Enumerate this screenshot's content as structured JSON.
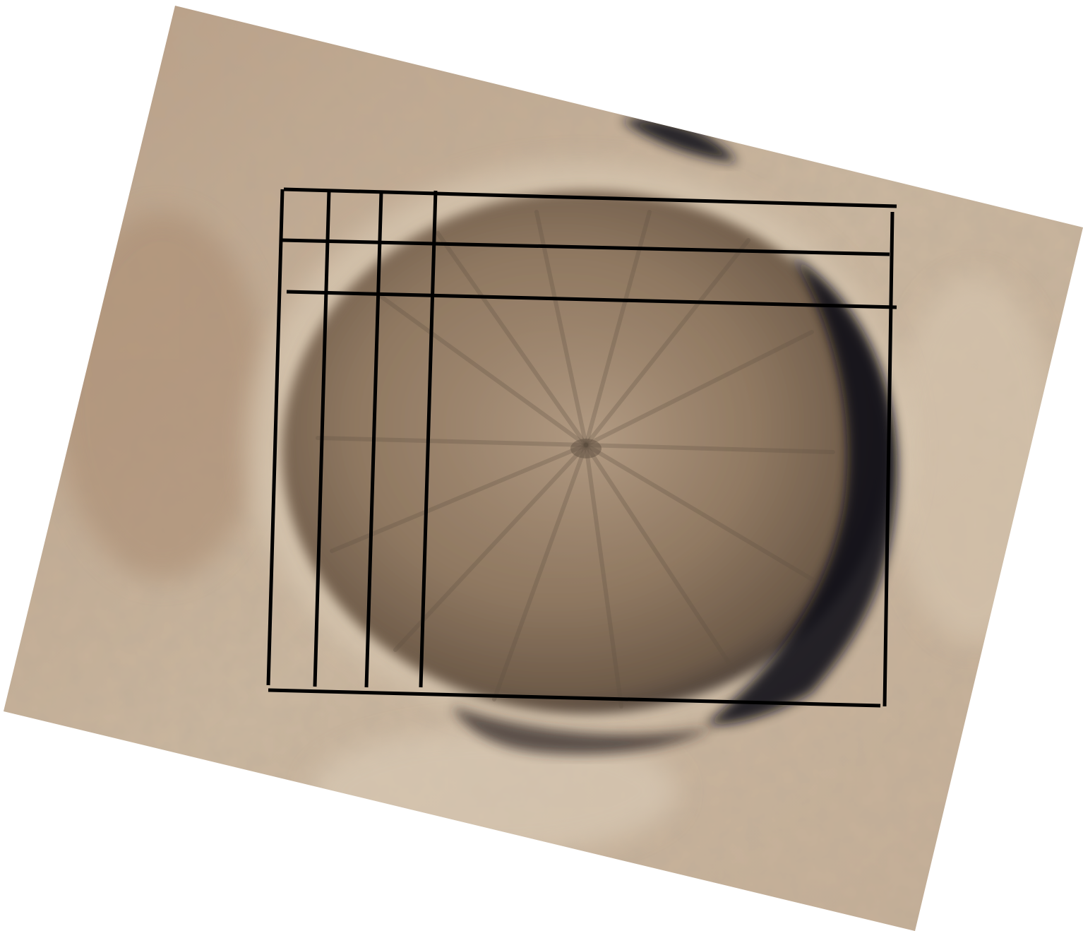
{
  "image": {
    "subject": "aerial-photo-of-crater",
    "colors": {
      "page_background": "#ffffff",
      "desert_tan": "#c2ab92",
      "desert_light": "#d6c4ae",
      "crater_brown": "#8a725a",
      "crater_floor": "#a68d74",
      "shadow_dark": "#1a1a22",
      "grid_line": "#000000"
    },
    "overlay": {
      "type": "hand-drawn-grid",
      "rows": 3,
      "columns": 4
    }
  }
}
